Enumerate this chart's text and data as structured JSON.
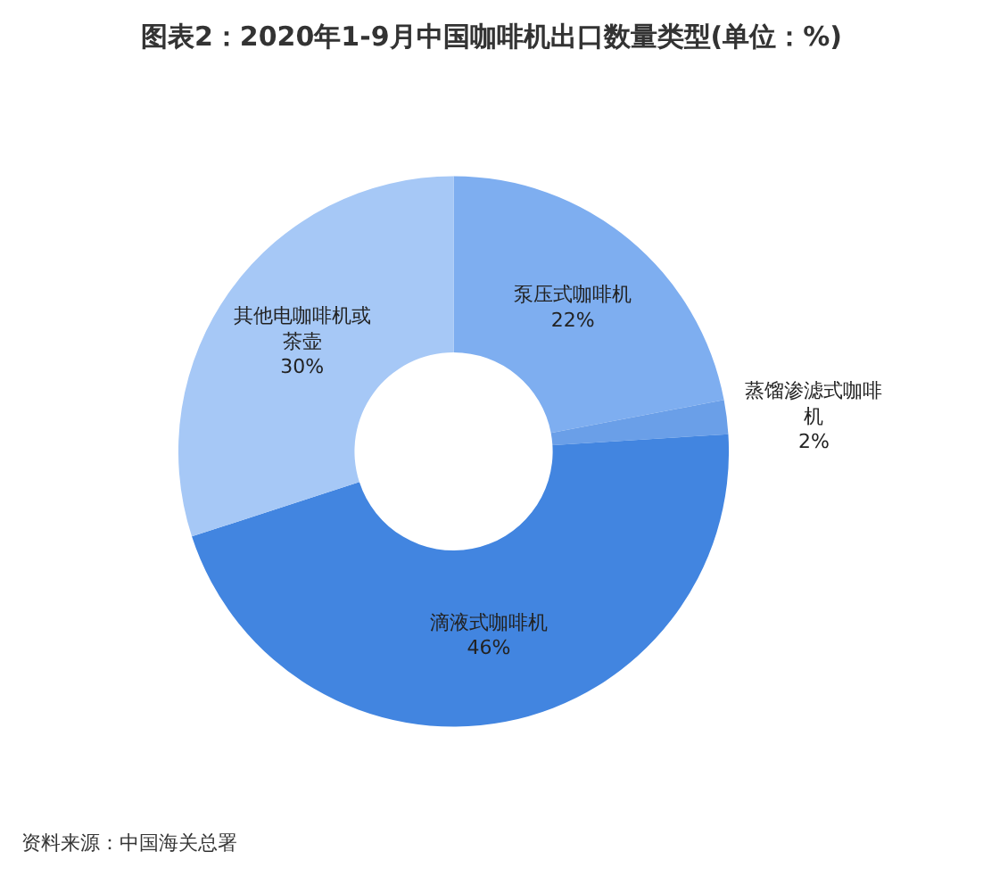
{
  "chart_data": {
    "type": "donut",
    "title": "图表2：2020年1-9月中国咖啡机出口数量类型(单位：%)",
    "categories": [
      "泵压式咖啡机",
      "蒸馏渗滤式咖啡机",
      "滴液式咖啡机",
      "其他电咖啡机或茶壶"
    ],
    "values": [
      22,
      2,
      46,
      30
    ],
    "value_labels": [
      "22%",
      "2%",
      "46%",
      "30%"
    ],
    "colors": [
      "#7eaef0",
      "#6a9fe8",
      "#4285e0",
      "#a6c8f6"
    ],
    "legend": false,
    "annotations": [
      "资料来源：中国海关总署"
    ]
  }
}
